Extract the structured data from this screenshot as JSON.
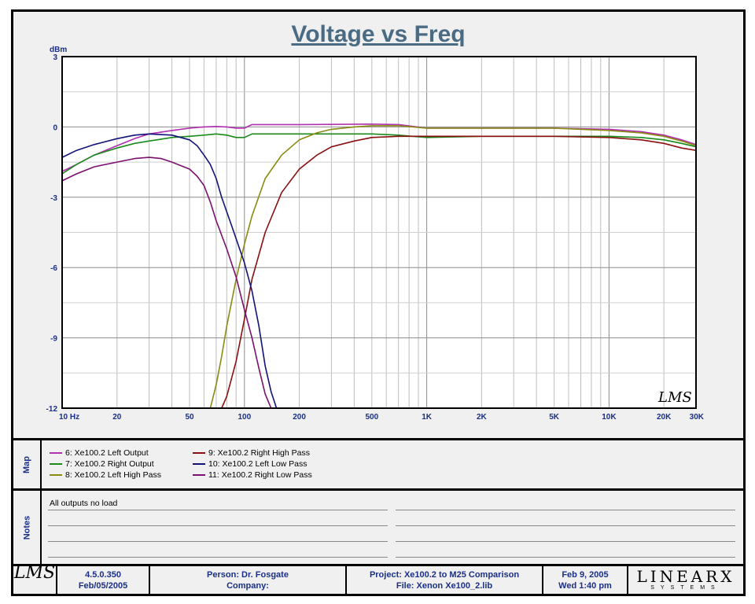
{
  "chart_data": {
    "type": "line",
    "title": "Voltage vs Freq",
    "ylabel": "dBm",
    "xlabel": "",
    "x_scale": "log",
    "xlim": [
      10,
      30000
    ],
    "ylim": [
      -12,
      3
    ],
    "y_ticks": [
      3,
      0,
      -3,
      -6,
      -9,
      -12
    ],
    "x_tick_labels": [
      {
        "v": 10,
        "t": "10  Hz"
      },
      {
        "v": 20,
        "t": "20"
      },
      {
        "v": 50,
        "t": "50"
      },
      {
        "v": 100,
        "t": "100"
      },
      {
        "v": 200,
        "t": "200"
      },
      {
        "v": 500,
        "t": "500"
      },
      {
        "v": 1000,
        "t": "1K"
      },
      {
        "v": 2000,
        "t": "2K"
      },
      {
        "v": 5000,
        "t": "5K"
      },
      {
        "v": 10000,
        "t": "10K"
      },
      {
        "v": 20000,
        "t": "20K"
      },
      {
        "v": 30000,
        "t": "30K"
      }
    ],
    "grid": true,
    "watermark": "LMS",
    "series": [
      {
        "name": "6: Xe100.2 Left Output",
        "color": "#b030b0",
        "points": [
          [
            10,
            -1.9
          ],
          [
            12,
            -1.6
          ],
          [
            15,
            -1.2
          ],
          [
            20,
            -0.8
          ],
          [
            25,
            -0.5
          ],
          [
            30,
            -0.3
          ],
          [
            40,
            -0.15
          ],
          [
            50,
            -0.05
          ],
          [
            60,
            0.0
          ],
          [
            70,
            0.02
          ],
          [
            80,
            0.0
          ],
          [
            90,
            -0.05
          ],
          [
            100,
            -0.05
          ],
          [
            110,
            0.1
          ],
          [
            200,
            0.1
          ],
          [
            500,
            0.12
          ],
          [
            700,
            0.1
          ],
          [
            1000,
            -0.05
          ],
          [
            2000,
            -0.05
          ],
          [
            5000,
            -0.05
          ],
          [
            10000,
            -0.1
          ],
          [
            15000,
            -0.2
          ],
          [
            20000,
            -0.35
          ],
          [
            25000,
            -0.55
          ],
          [
            30000,
            -0.75
          ]
        ]
      },
      {
        "name": "7: Xe100.2 Right Output",
        "color": "#1a8a1a",
        "points": [
          [
            10,
            -2.0
          ],
          [
            12,
            -1.6
          ],
          [
            15,
            -1.2
          ],
          [
            20,
            -0.9
          ],
          [
            25,
            -0.7
          ],
          [
            30,
            -0.6
          ],
          [
            40,
            -0.45
          ],
          [
            50,
            -0.4
          ],
          [
            60,
            -0.35
          ],
          [
            70,
            -0.3
          ],
          [
            80,
            -0.35
          ],
          [
            90,
            -0.45
          ],
          [
            100,
            -0.45
          ],
          [
            110,
            -0.3
          ],
          [
            200,
            -0.3
          ],
          [
            500,
            -0.3
          ],
          [
            700,
            -0.35
          ],
          [
            1000,
            -0.45
          ],
          [
            2000,
            -0.4
          ],
          [
            5000,
            -0.4
          ],
          [
            10000,
            -0.4
          ],
          [
            15000,
            -0.45
          ],
          [
            20000,
            -0.55
          ],
          [
            25000,
            -0.7
          ],
          [
            30000,
            -0.85
          ]
        ]
      },
      {
        "name": "8: Xe100.2 Left High Pass",
        "color": "#8a8a10",
        "points": [
          [
            65,
            -12
          ],
          [
            70,
            -11
          ],
          [
            75,
            -9.8
          ],
          [
            80,
            -8.5
          ],
          [
            90,
            -6.5
          ],
          [
            100,
            -5.0
          ],
          [
            110,
            -3.8
          ],
          [
            130,
            -2.2
          ],
          [
            160,
            -1.2
          ],
          [
            200,
            -0.55
          ],
          [
            250,
            -0.25
          ],
          [
            300,
            -0.1
          ],
          [
            400,
            0.0
          ],
          [
            500,
            0.05
          ],
          [
            700,
            0.05
          ],
          [
            1000,
            -0.05
          ],
          [
            2000,
            -0.05
          ],
          [
            5000,
            -0.05
          ],
          [
            10000,
            -0.15
          ],
          [
            15000,
            -0.25
          ],
          [
            20000,
            -0.4
          ],
          [
            25000,
            -0.6
          ],
          [
            30000,
            -0.8
          ]
        ]
      },
      {
        "name": "9: Xe100.2 Right High Pass",
        "color": "#8a1010",
        "points": [
          [
            75,
            -12
          ],
          [
            80,
            -11.5
          ],
          [
            90,
            -10
          ],
          [
            100,
            -8.2
          ],
          [
            110,
            -6.5
          ],
          [
            130,
            -4.5
          ],
          [
            160,
            -2.8
          ],
          [
            200,
            -1.8
          ],
          [
            250,
            -1.2
          ],
          [
            300,
            -0.85
          ],
          [
            400,
            -0.6
          ],
          [
            500,
            -0.45
          ],
          [
            700,
            -0.4
          ],
          [
            1000,
            -0.4
          ],
          [
            2000,
            -0.4
          ],
          [
            5000,
            -0.4
          ],
          [
            10000,
            -0.45
          ],
          [
            15000,
            -0.55
          ],
          [
            20000,
            -0.7
          ],
          [
            25000,
            -0.9
          ],
          [
            30000,
            -1.0
          ]
        ]
      },
      {
        "name": "10: Xe100.2 Left Low Pass",
        "color": "#12127a",
        "points": [
          [
            10,
            -1.3
          ],
          [
            12,
            -1.0
          ],
          [
            15,
            -0.75
          ],
          [
            20,
            -0.5
          ],
          [
            25,
            -0.35
          ],
          [
            30,
            -0.3
          ],
          [
            40,
            -0.35
          ],
          [
            50,
            -0.55
          ],
          [
            55,
            -0.8
          ],
          [
            60,
            -1.2
          ],
          [
            65,
            -1.6
          ],
          [
            70,
            -2.2
          ],
          [
            75,
            -3.0
          ],
          [
            85,
            -4.2
          ],
          [
            100,
            -5.8
          ],
          [
            110,
            -7.0
          ],
          [
            120,
            -8.5
          ],
          [
            130,
            -10.2
          ],
          [
            140,
            -11.3
          ],
          [
            150,
            -12
          ]
        ]
      },
      {
        "name": "11: Xe100.2 Right Low Pass",
        "color": "#7a1070",
        "points": [
          [
            10,
            -2.3
          ],
          [
            12,
            -2.0
          ],
          [
            15,
            -1.7
          ],
          [
            20,
            -1.5
          ],
          [
            25,
            -1.35
          ],
          [
            30,
            -1.3
          ],
          [
            35,
            -1.35
          ],
          [
            40,
            -1.5
          ],
          [
            50,
            -1.8
          ],
          [
            55,
            -2.1
          ],
          [
            60,
            -2.5
          ],
          [
            65,
            -3.2
          ],
          [
            70,
            -4.0
          ],
          [
            80,
            -5.2
          ],
          [
            90,
            -6.4
          ],
          [
            100,
            -7.8
          ],
          [
            110,
            -9.0
          ],
          [
            120,
            -10.3
          ],
          [
            130,
            -11.4
          ],
          [
            140,
            -12
          ]
        ]
      }
    ]
  },
  "map": {
    "label": "Map",
    "items": [
      {
        "label": "6: Xe100.2 Left Output",
        "color": "#b030b0"
      },
      {
        "label": "7: Xe100.2 Right Output",
        "color": "#1a8a1a"
      },
      {
        "label": "8: Xe100.2 Left High Pass",
        "color": "#8a8a10"
      },
      {
        "label": "9: Xe100.2 Right High Pass",
        "color": "#8a1010"
      },
      {
        "label": "10: Xe100.2 Left Low Pass",
        "color": "#12127a"
      },
      {
        "label": "11: Xe100.2 Right Low Pass",
        "color": "#7a1070"
      }
    ]
  },
  "notes": {
    "label": "Notes",
    "text": "All outputs no load"
  },
  "footer": {
    "logo": "LMS",
    "version": "4.5.0.350",
    "version_date": "Feb/05/2005",
    "person": "Person: Dr. Fosgate",
    "company": "Company:",
    "project": "Project: Xe100.2 to M25 Comparison",
    "file": "File: Xenon Xe100_2.lib",
    "date": "Feb  9, 2005",
    "time": "Wed  1:40 pm",
    "brand_main": "LINEARX",
    "brand_sub": "SYSTEMS"
  }
}
